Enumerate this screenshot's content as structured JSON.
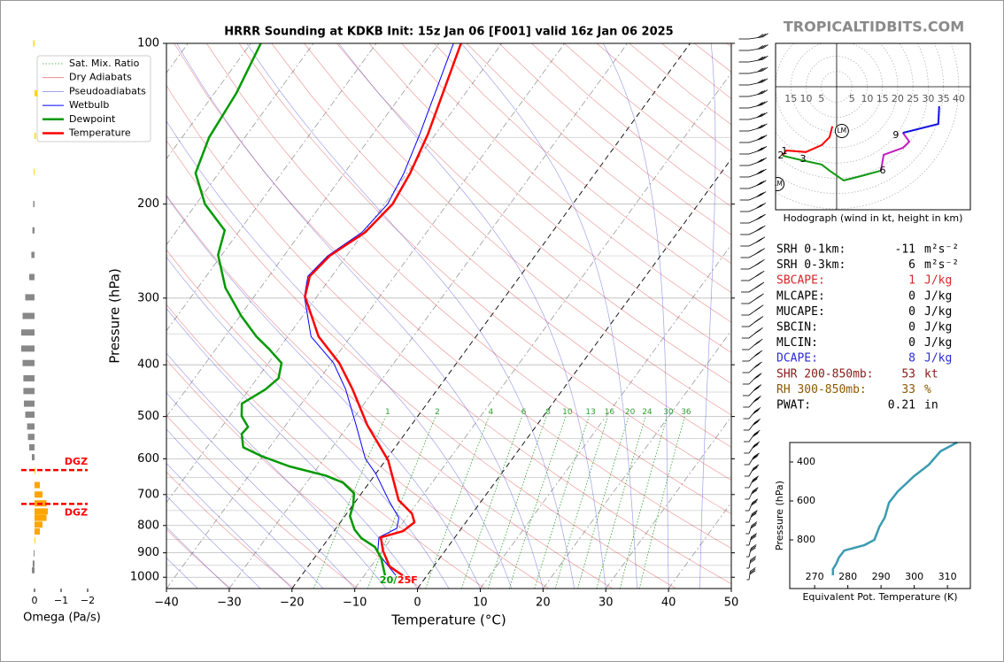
{
  "header": {
    "site": "TROPICALTIDBITS.COM"
  },
  "chart_data": [
    {
      "type": "skewt",
      "title": "HRRR Sounding at KDKB Init: 15z Jan 06 [F001] valid 16z Jan 06 2025",
      "xlabel": "Temperature (°C)",
      "ylabel": "Pressure (hPa)",
      "log_y": true,
      "grid": true,
      "legend": "upper left",
      "xlim": [
        -40,
        50
      ],
      "xticks": [
        {
          "value": -40,
          "label": "−40"
        },
        {
          "value": -30,
          "label": "−30"
        },
        {
          "value": -20,
          "label": "−20"
        },
        {
          "value": -10,
          "label": "−10"
        },
        0,
        10,
        20,
        30,
        40,
        50
      ],
      "ylim": [
        1050,
        100
      ],
      "yticks": [
        100,
        200,
        300,
        400,
        500,
        600,
        700,
        800,
        900,
        1000
      ],
      "reference_lines": [
        {
          "name": "Sat. Mix. Ratio",
          "color": "#2ca02c",
          "labels": [
            1,
            2,
            4,
            6,
            8,
            10,
            13,
            16,
            20,
            24,
            30,
            36
          ]
        },
        {
          "name": "Dry Adiabats",
          "color": "#d62728"
        },
        {
          "name": "Pseudoadiabats",
          "color": "#3030d0"
        }
      ],
      "series": [
        {
          "name": "Wetbulb",
          "color": "#0000ff",
          "pressure": [
            992,
            900,
            842,
            810,
            774,
            720,
            640,
            600,
            519,
            445,
            397,
            354,
            298,
            273,
            250,
            226,
            200,
            175,
            148,
            100
          ],
          "values": [
            -5.0,
            -10.5,
            -12.1,
            -10.3,
            -11.2,
            -14.7,
            -20.0,
            -23.4,
            -28.8,
            -34.6,
            -39.6,
            -46.3,
            -52.0,
            -53.8,
            -53.0,
            -50.3,
            -49.5,
            -50.5,
            -52.5,
            -57.7
          ]
        },
        {
          "name": "Dewpoint",
          "color": "#009900",
          "pressure": [
            992,
            919,
            878,
            845,
            814,
            768,
            731,
            696,
            665,
            645,
            620,
            593,
            571,
            539,
            523,
            499,
            473,
            445,
            424,
            397,
            375,
            354,
            324,
            287,
            249,
            224,
            200,
            175,
            150,
            124,
            100
          ],
          "values": [
            -6.7,
            -9.4,
            -11.6,
            -14.8,
            -16.9,
            -19.2,
            -20.0,
            -21.2,
            -24.2,
            -27.8,
            -34.6,
            -40.3,
            -44.2,
            -46.0,
            -45.8,
            -48.1,
            -49.5,
            -47.4,
            -46.6,
            -47.9,
            -51.3,
            -55.0,
            -59.8,
            -65.6,
            -70.6,
            -72.4,
            -78.6,
            -83.7,
            -85.7,
            -86.5,
            -88.4
          ]
        },
        {
          "name": "Temperature",
          "color": "#ff0000",
          "pressure": [
            992,
            955,
            892,
            842,
            820,
            789,
            760,
            717,
            677,
            604,
            519,
            445,
            397,
            354,
            298,
            273,
            250,
            226,
            200,
            175,
            148,
            100
          ],
          "values": [
            -3.9,
            -7.0,
            -9.9,
            -11.8,
            -9.0,
            -8.2,
            -9.6,
            -13.3,
            -15.4,
            -19.6,
            -27.0,
            -33.5,
            -38.7,
            -45.1,
            -51.9,
            -53.5,
            -52.7,
            -49.8,
            -48.7,
            -49.5,
            -51.2,
            -56.5
          ]
        }
      ],
      "annotations": [
        "20/",
        "25F"
      ]
    },
    {
      "type": "bar",
      "orientation": "horizontal",
      "xlabel": "Omega (Pa/s)",
      "xlim": [
        0.7,
        -2
      ],
      "xticks": [
        0,
        {
          "value": -1,
          "label": "−1"
        },
        {
          "value": -2,
          "label": "−2"
        }
      ],
      "ylim": [
        1050,
        100
      ],
      "pressure": [
        100,
        124,
        149,
        174,
        200,
        224,
        249,
        274,
        299,
        324,
        348,
        373,
        397,
        424,
        448,
        473,
        496,
        522,
        546,
        571,
        596,
        632,
        672,
        700,
        727,
        753,
        774,
        797,
        821,
        853,
        902,
        943,
        970
      ],
      "values": [
        0.05,
        -0.12,
        -0.05,
        0.03,
        0.05,
        0.08,
        0.12,
        0.2,
        0.35,
        0.45,
        0.5,
        0.5,
        0.45,
        0.42,
        0.42,
        0.4,
        0.35,
        0.28,
        0.25,
        0.2,
        0.1,
        -0.02,
        -0.2,
        -0.3,
        -0.45,
        -0.5,
        -0.45,
        -0.3,
        -0.2,
        -0.03,
        0.03,
        0.07,
        0.1
      ],
      "colors": [
        "#ffd700",
        "#ffd700",
        "#ffd700",
        "#ffd700",
        "#888888",
        "#888888",
        "#888888",
        "#888888",
        "#888888",
        "#888888",
        "#888888",
        "#888888",
        "#888888",
        "#888888",
        "#888888",
        "#888888",
        "#888888",
        "#888888",
        "#888888",
        "#888888",
        "#888888",
        "#ffd700",
        "#ffa500",
        "#ffa500",
        "#ffa500",
        "#ffa500",
        "#ffa500",
        "#ffa500",
        "#ffa500",
        "#ffd700",
        "#888888",
        "#888888",
        "#888888"
      ],
      "dgz": [
        {
          "pressure": 630,
          "label": "DGZ"
        },
        {
          "pressure": 729,
          "label": "DGZ"
        }
      ],
      "dgz_color": "#ff0000"
    },
    {
      "type": "hodograph",
      "caption": "Hodograph (wind in kt, height in km)",
      "xlim": [
        -20,
        43.8
      ],
      "ylim": [
        -40.3,
        14.2
      ],
      "rings": [
        5,
        10,
        15,
        20,
        25,
        30,
        35,
        40
      ],
      "series": [
        {
          "color": "#ff0000",
          "u": [
            -1.4,
            -2.3,
            -4.9,
            -10.1,
            -16.5,
            -17.7
          ],
          "v": [
            -13.0,
            -16.5,
            -19.1,
            -21.4,
            -20.9,
            -22.6
          ]
        },
        {
          "color": "#119911",
          "u": [
            -17.7,
            -11.3,
            -4.9,
            -2.3,
            2.3,
            7.8,
            14.5
          ],
          "v": [
            -22.6,
            -24.1,
            -25.5,
            -27.5,
            -30.7,
            -29.3,
            -27.5
          ]
        },
        {
          "color": "#c020c0",
          "u": [
            14.5,
            15.4,
            21.7,
            23.8,
            21.7
          ],
          "v": [
            -27.5,
            -22.3,
            -20.0,
            -18.0,
            -15.1
          ]
        },
        {
          "color": "#1010e0",
          "u": [
            21.7,
            33.3,
            33.6
          ],
          "v": [
            -15.1,
            -12.2,
            -6.4
          ]
        }
      ],
      "height_labels": [
        {
          "height": 1,
          "u": -17.1,
          "v": -21.2
        },
        {
          "height": 2,
          "u": -18.3,
          "v": -22.6
        },
        {
          "height": 3,
          "u": -11.0,
          "v": -23.8
        },
        {
          "height": 6,
          "u": 15.1,
          "v": -27.5
        },
        {
          "height": 9,
          "u": 19.4,
          "v": -15.9
        }
      ],
      "storm_motion": [
        {
          "name": "LM",
          "u": 1.7,
          "v": -14.5
        },
        {
          "name": "RM",
          "u": -19.4,
          "v": -31.9
        }
      ]
    },
    {
      "type": "line",
      "xlabel": "Equivalent Pot. Temperature (K)",
      "ylabel": "Pressure (hPa)",
      "color": "#3a9bb0",
      "xlim": [
        262.5,
        316.9
      ],
      "xticks": [
        270,
        280,
        290,
        300,
        310
      ],
      "ylim": [
        1050,
        300
      ],
      "yticks": [
        400,
        600,
        800
      ],
      "x": [
        312.9,
        307.9,
        304.4,
        299.9,
        295.1,
        292.4,
        291.1,
        289.5,
        288.0,
        285.0,
        278.9,
        277.3,
        276.5,
        275.5,
        275.5
      ],
      "y": [
        300,
        345,
        414,
        473,
        550,
        609,
        686,
        732,
        800,
        827,
        855,
        891,
        923,
        950,
        982
      ]
    }
  ],
  "indices": [
    {
      "label": "SRH 0-1km:",
      "value": -11,
      "unit": "m²s⁻²",
      "color": "#000000"
    },
    {
      "label": "SRH 0-3km:",
      "value": 6,
      "unit": "m²s⁻²",
      "color": "#000000"
    },
    {
      "label": "SBCAPE:",
      "value": 1,
      "unit": "J/kg",
      "color": "#d62728"
    },
    {
      "label": "MLCAPE:",
      "value": 0,
      "unit": "J/kg",
      "color": "#000000"
    },
    {
      "label": "MUCAPE:",
      "value": 0,
      "unit": "J/kg",
      "color": "#000000"
    },
    {
      "label": "SBCIN:",
      "value": 0,
      "unit": "J/kg",
      "color": "#000000"
    },
    {
      "label": "MLCIN:",
      "value": 0,
      "unit": "J/kg",
      "color": "#000000"
    },
    {
      "label": "DCAPE:",
      "value": 8,
      "unit": "J/kg",
      "color": "#2a2ad6"
    },
    {
      "label": "SHR 200-850mb:",
      "value": 53,
      "unit": "kt",
      "color": "#8b1a1a"
    },
    {
      "label": "RH 300-850mb:",
      "value": 33,
      "unit": "%",
      "color": "#8b5a00"
    },
    {
      "label": "PWAT:",
      "value": 0.21,
      "unit": "in",
      "color": "#000000"
    }
  ]
}
